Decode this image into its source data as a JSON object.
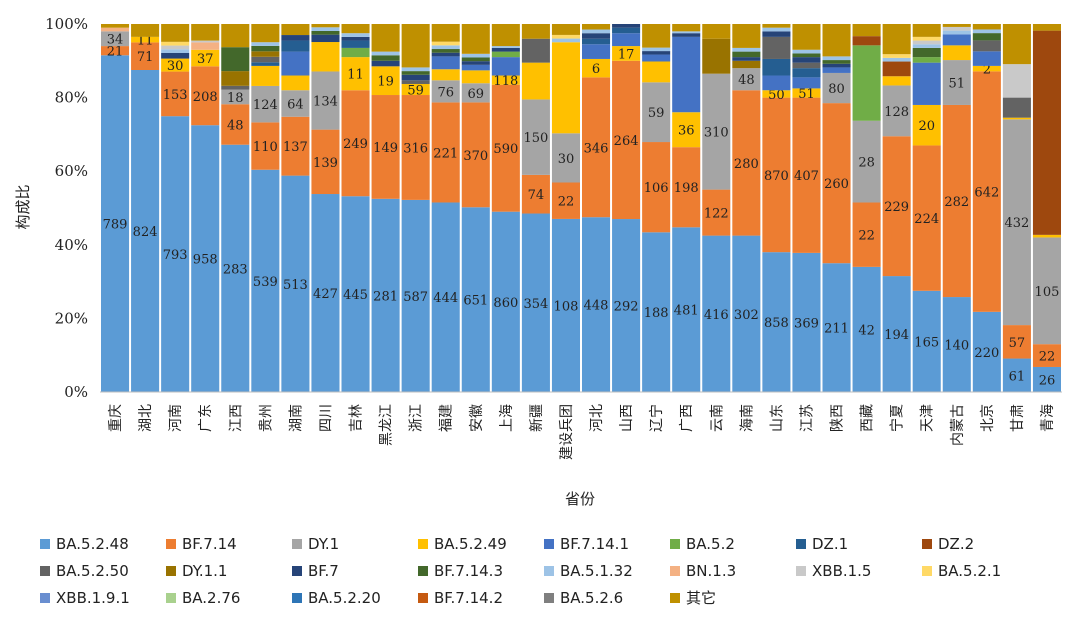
{
  "chart_data": {
    "type": "bar",
    "stacked": "percent",
    "title": "",
    "xlabel": "省份",
    "ylabel": "构成比",
    "ylim": [
      0,
      100
    ],
    "yticks": [
      "0%",
      "20%",
      "40%",
      "60%",
      "80%",
      "100%"
    ],
    "categories": [
      "重庆",
      "湖北",
      "河南",
      "广东",
      "江西",
      "贵州",
      "湖南",
      "四川",
      "吉林",
      "黑龙江",
      "浙江",
      "福建",
      "安徽",
      "上海",
      "新疆",
      "建设兵团",
      "河北",
      "山西",
      "辽宁",
      "广西",
      "云南",
      "海南",
      "山东",
      "江苏",
      "陕西",
      "西藏",
      "宁夏",
      "天津",
      "内蒙古",
      "北京",
      "甘肃",
      "青海"
    ],
    "series": [
      {
        "name": "BA.5.2.48",
        "color": "#5B9BD5",
        "values": [
          91.5,
          87.5,
          74.2,
          72.5,
          67.2,
          61.0,
          58.8,
          53.8,
          53.2,
          52.5,
          52.2,
          51.5,
          50.2,
          49.0,
          48.5,
          47.5,
          47.5,
          47.0,
          46.0,
          44.8,
          42.5,
          42.5,
          38.0,
          37.8,
          35.0,
          34.0,
          31.5,
          27.5,
          25.8,
          22.0,
          10.0,
          6.8
        ],
        "labels": [
          "789",
          "824",
          "793",
          "958",
          "283",
          "539",
          "513",
          "427",
          "445",
          "281",
          "587",
          "444",
          "651",
          "860",
          "354",
          "108",
          "448",
          "292",
          "188",
          "481",
          "416",
          "302",
          "858",
          "369",
          "211",
          "42",
          "194",
          "165",
          "140",
          "220",
          "61",
          "26"
        ]
      },
      {
        "name": "BF.7.14",
        "color": "#ED7D31",
        "values": [
          2.5,
          7.5,
          12.0,
          16.0,
          11.0,
          13.0,
          16.0,
          17.5,
          28.8,
          28.2,
          28.5,
          27.2,
          28.5,
          34.5,
          10.5,
          10.0,
          38.0,
          43.0,
          26.0,
          21.8,
          12.5,
          39.5,
          42.0,
          42.2,
          43.5,
          17.5,
          38.0,
          39.5,
          52.2,
          66.0,
          10.0,
          6.2
        ],
        "labels": [
          "21",
          "71",
          "153",
          "208",
          "48",
          "110",
          "137",
          "139",
          "249",
          "149",
          "316",
          "221",
          "370",
          "590",
          "74",
          "22",
          "346",
          "264",
          "106",
          "198",
          "122",
          "280",
          "870",
          "407",
          "260",
          "22",
          "229",
          "224",
          "282",
          "642",
          "57",
          "22"
        ]
      },
      {
        "name": "DY.1",
        "color": "#A5A5A5",
        "values": [
          4.0,
          0,
          0,
          0,
          4.0,
          10.0,
          7.2,
          15.8,
          0,
          0,
          0,
          6.0,
          5.2,
          0,
          20.5,
          13.5,
          0,
          0,
          17.2,
          0,
          31.5,
          6.0,
          0,
          0,
          8.2,
          22.2,
          13.8,
          0,
          12.2,
          0,
          61.5,
          29.0
        ],
        "labels": [
          "34",
          "",
          "",
          "",
          "18",
          "124",
          "64",
          "134",
          "",
          "",
          "",
          "76",
          "69",
          "",
          "150",
          "30",
          "",
          "",
          "59",
          "",
          "310",
          "48",
          "",
          "",
          "80",
          "28",
          "128",
          "",
          "51",
          "",
          "432",
          "105"
        ]
      },
      {
        "name": "BA.5.2.49",
        "color": "#FFC000",
        "values": [
          0,
          1.5,
          3.5,
          4.5,
          0,
          5.5,
          4.0,
          8.0,
          9.0,
          7.8,
          3.0,
          3.0,
          3.5,
          2.5,
          10.0,
          25.0,
          5.0,
          4.0,
          6.0,
          9.5,
          0,
          0,
          2.0,
          2.5,
          0,
          0,
          2.5,
          11.0,
          4.0,
          1.5,
          0.5,
          0.7
        ],
        "labels": [
          "",
          "11",
          "30",
          "37",
          "",
          "",
          "",
          "",
          "11",
          "19",
          "59",
          "",
          "",
          "118",
          "",
          "",
          "6",
          "17",
          "",
          "36",
          "",
          "",
          "50",
          "51",
          "",
          "",
          "",
          "20",
          "",
          "2",
          "",
          ""
        ]
      },
      {
        "name": "BF.7.14.1",
        "color": "#4472C4",
        "values": [
          0,
          0,
          0,
          0,
          0,
          0,
          6.5,
          0,
          0,
          0,
          0,
          3.5,
          1.5,
          5.0,
          0,
          0,
          4.0,
          3.5,
          2.0,
          20.5,
          0,
          0,
          4.0,
          3.0,
          1.5,
          0,
          0,
          11.5,
          3.0,
          4.0,
          0,
          0
        ],
        "labels": []
      },
      {
        "name": "BA.5.2",
        "color": "#70AD47",
        "values": [
          0,
          0,
          0,
          0,
          0,
          0,
          0,
          0,
          2.5,
          0,
          0,
          0,
          0,
          1.5,
          0,
          0,
          0,
          0,
          0,
          0,
          0,
          0,
          0,
          0,
          0,
          20.5,
          0,
          1.5,
          0,
          0,
          0,
          0
        ],
        "labels": []
      },
      {
        "name": "DZ.1",
        "color": "#255E91",
        "values": [
          0,
          0,
          0,
          0,
          0,
          1.0,
          3.0,
          0,
          2.0,
          0,
          0,
          0,
          0,
          0,
          0,
          0,
          1.5,
          1.5,
          0,
          0,
          0,
          0,
          4.5,
          2.5,
          0,
          0,
          0,
          0,
          0,
          0,
          0,
          0
        ],
        "labels": []
      },
      {
        "name": "DZ.2",
        "color": "#9E480E",
        "values": [
          0,
          0,
          0,
          0,
          0,
          0,
          0,
          0,
          0,
          0,
          0,
          0,
          0,
          0,
          0,
          0,
          0,
          0,
          0,
          0,
          0,
          0,
          0,
          0,
          0,
          2.5,
          4.0,
          0,
          0,
          0,
          0,
          55.5
        ],
        "labels": []
      },
      {
        "name": "BA.5.2.50",
        "color": "#636363",
        "values": [
          0,
          0,
          0,
          0,
          1.0,
          1.5,
          0,
          0,
          0,
          0,
          1.0,
          0,
          0,
          0,
          6.5,
          0,
          0,
          0,
          0,
          0,
          0,
          0,
          6.0,
          1.5,
          0,
          0,
          0,
          0,
          0,
          3.0,
          6.0,
          0
        ],
        "labels": []
      },
      {
        "name": "DY.1.1",
        "color": "#997300",
        "values": [
          0,
          0,
          0,
          0,
          4.0,
          1.5,
          0,
          0,
          0,
          0,
          0,
          0,
          0,
          0,
          0,
          0,
          0,
          0,
          0,
          0,
          9.5,
          2.0,
          0,
          0,
          0,
          0,
          0,
          0,
          0,
          0,
          0,
          0
        ],
        "labels": []
      },
      {
        "name": "BF.7",
        "color": "#264478",
        "values": [
          0,
          0,
          1.5,
          0,
          0,
          0,
          1.5,
          2.0,
          1.0,
          1.5,
          1.5,
          1.0,
          1.0,
          1.0,
          0,
          0,
          1.5,
          1.0,
          1.0,
          1.0,
          0,
          1.0,
          1.5,
          1.5,
          1.0,
          0,
          0,
          0,
          0,
          0,
          0,
          0
        ],
        "labels": []
      },
      {
        "name": "BF.7.14.3",
        "color": "#43682B",
        "values": [
          0,
          0,
          0,
          0,
          6.5,
          1.5,
          0,
          1.0,
          0,
          1.5,
          1.0,
          1.0,
          1.0,
          0,
          0,
          0,
          0,
          0,
          0,
          0,
          0,
          1.5,
          0,
          1.0,
          1.0,
          0,
          0,
          2.5,
          0,
          2.0,
          0,
          0
        ],
        "labels": []
      },
      {
        "name": "BA.5.1.32",
        "color": "#9DC3E6",
        "values": [
          0,
          0,
          1.0,
          0,
          0,
          1.0,
          0,
          1.0,
          1.0,
          1.0,
          1.0,
          1.0,
          1.0,
          0.5,
          0,
          1.0,
          1.0,
          0,
          1.0,
          0.5,
          0,
          1.0,
          1.0,
          1.0,
          1.0,
          0,
          1.0,
          1.0,
          1.0,
          1.0,
          0,
          0
        ],
        "labels": []
      },
      {
        "name": "BN.1.3",
        "color": "#F4B183",
        "values": [
          1.0,
          0,
          0,
          2.0,
          0,
          0,
          0,
          0,
          0,
          0,
          0,
          0,
          0,
          0,
          0,
          0,
          0,
          0,
          0,
          0,
          0,
          0,
          0,
          0,
          0,
          0,
          0,
          0,
          0,
          0,
          0,
          0
        ],
        "labels": []
      },
      {
        "name": "XBB.1.5",
        "color": "#C9C9C9",
        "values": [
          0,
          0,
          1.0,
          0.5,
          0,
          0,
          0,
          0,
          0,
          0,
          0,
          0,
          0,
          0,
          0,
          0,
          0,
          0,
          0,
          0,
          0,
          0,
          0,
          0,
          0,
          0,
          0,
          1.0,
          1.0,
          0,
          10.0,
          0
        ],
        "labels": []
      },
      {
        "name": "BA.5.2.1",
        "color": "#FFD966",
        "values": [
          0,
          0,
          1.0,
          0,
          0,
          0,
          0,
          0,
          0,
          0,
          0,
          1.0,
          0,
          0,
          0,
          1.0,
          0,
          0,
          0,
          0,
          0,
          0,
          0,
          0,
          0,
          0,
          1.0,
          1.0,
          0,
          0,
          0,
          0
        ],
        "labels": []
      },
      {
        "name": "XBB.1.9.1",
        "color": "#698ED0",
        "values": [
          0,
          0,
          0,
          0,
          0,
          0,
          0,
          0,
          0,
          0,
          0,
          0,
          0,
          0,
          0,
          0,
          0,
          0,
          0,
          0,
          0,
          0,
          0,
          0,
          0,
          0,
          0,
          0,
          0,
          0,
          0,
          0
        ],
        "labels": []
      },
      {
        "name": "BA.2.76",
        "color": "#A9D18E",
        "values": [
          0,
          0,
          0,
          0,
          0,
          0,
          0,
          0,
          0,
          0,
          0,
          0,
          0,
          0,
          0,
          0,
          0,
          0,
          0,
          0,
          0,
          0,
          0,
          0,
          0,
          0,
          0,
          0,
          0,
          0,
          0,
          0
        ],
        "labels": []
      },
      {
        "name": "BA.5.2.20",
        "color": "#2E75B6",
        "values": [
          0,
          0,
          0,
          0,
          0,
          0,
          0,
          0,
          0,
          0,
          0,
          0,
          0,
          0,
          0,
          0,
          0,
          0,
          0,
          0,
          0,
          0,
          0,
          0,
          0,
          0,
          0,
          0,
          0,
          0,
          0,
          0
        ],
        "labels": []
      },
      {
        "name": "BF.7.14.2",
        "color": "#C55A11",
        "values": [
          0,
          0,
          0,
          0,
          0,
          0,
          0,
          0,
          0,
          0,
          0,
          0,
          0,
          0,
          0,
          0,
          0,
          0,
          0,
          0,
          0,
          0,
          0,
          0,
          0,
          0,
          0,
          0,
          0,
          0,
          0,
          0
        ],
        "labels": []
      },
      {
        "name": "BA.5.2.6",
        "color": "#7F7F7F",
        "values": [
          0,
          0,
          0,
          0,
          0,
          0,
          0,
          0,
          0,
          0,
          0,
          0,
          0,
          0,
          0,
          0,
          0,
          0,
          0,
          0,
          0,
          0,
          0,
          0,
          0,
          0,
          0,
          0,
          0,
          0,
          0,
          0
        ],
        "labels": []
      },
      {
        "name": "其它",
        "color": "#BF9000",
        "values": [
          1.0,
          3.5,
          4.8,
          4.5,
          6.3,
          5.0,
          3.0,
          0.9,
          2.5,
          7.5,
          11.8,
          4.8,
          8.1,
          6.0,
          4.0,
          3.0,
          1.5,
          0,
          6.8,
          2.0,
          4.0,
          6.5,
          1.0,
          7.0,
          8.8,
          3.3,
          8.2,
          3.5,
          0.8,
          1.5,
          12.0,
          1.8
        ],
        "labels": []
      }
    ]
  }
}
